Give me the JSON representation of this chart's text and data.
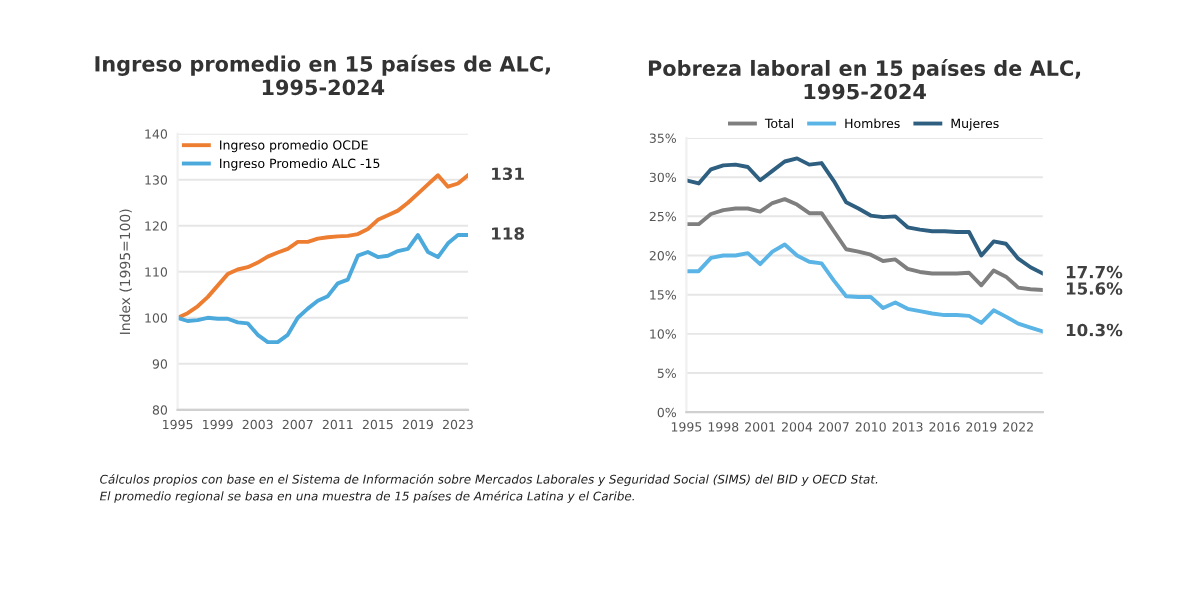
{
  "chart_data": [
    {
      "type": "line",
      "title": "Ingreso promedio en 15 países de ALC,\n1995-2024",
      "ylabel": "Index (1995=100)",
      "x": [
        1995,
        1996,
        1997,
        1998,
        1999,
        2000,
        2001,
        2002,
        2003,
        2004,
        2005,
        2006,
        2007,
        2008,
        2009,
        2010,
        2011,
        2012,
        2013,
        2014,
        2015,
        2016,
        2017,
        2018,
        2019,
        2020,
        2021,
        2022,
        2023,
        2024
      ],
      "series": [
        {
          "name": "Ingreso promedio OCDE",
          "color": "#ed7d31",
          "values": [
            100,
            101,
            102.5,
            104.5,
            107,
            109.5,
            110.5,
            111,
            112,
            113.3,
            114.2,
            115,
            116.5,
            116.5,
            117.2,
            117.5,
            117.7,
            117.8,
            118.2,
            119.3,
            121.3,
            122.3,
            123.3,
            125,
            127,
            129,
            131,
            128.5,
            129.2,
            131
          ],
          "value_labels": [
            null,
            null,
            null,
            null,
            null,
            null,
            null,
            null,
            null,
            null,
            null,
            null,
            null,
            null,
            null,
            null,
            null,
            null,
            null,
            null,
            null,
            null,
            null,
            null,
            null,
            null,
            null,
            null,
            null,
            "131"
          ]
        },
        {
          "name": "Ingreso Promedio ALC -15",
          "color": "#4ba9dc",
          "values": [
            100,
            99.3,
            99.5,
            100,
            99.8,
            99.8,
            99,
            98.8,
            96.3,
            94.7,
            94.7,
            96.3,
            100,
            102,
            103.7,
            104.7,
            107.5,
            108.3,
            113.5,
            114.3,
            113.2,
            113.5,
            114.5,
            115,
            118,
            114.3,
            113.2,
            116.2,
            118,
            118
          ],
          "value_labels": [
            null,
            null,
            null,
            null,
            null,
            null,
            null,
            null,
            null,
            null,
            null,
            null,
            null,
            null,
            null,
            null,
            null,
            null,
            null,
            null,
            null,
            null,
            null,
            null,
            null,
            null,
            null,
            null,
            null,
            "118"
          ]
        }
      ],
      "xlim": [
        1995,
        2024
      ],
      "xticks": [
        1995,
        1999,
        2003,
        2007,
        2011,
        2015,
        2019,
        2023
      ],
      "ylim": [
        80,
        140
      ],
      "yticks": [
        80,
        90,
        100,
        110,
        120,
        130,
        140
      ],
      "grid": "y",
      "legend": "top left",
      "marker": "none",
      "line_style": "solid",
      "annotations": [
        "Cálculos propios con base en el Sistema de Información sobre Mercados Laborales y Seguridad Social (SIMS) del BID y OECD Stat.\nEl promedio regional se basa en una muestra de 15 países de América Latina y el Caribe."
      ]
    },
    {
      "type": "line",
      "title": "Pobreza laboral en 15 países de ALC,\n1995-2024",
      "x": [
        1995,
        1996,
        1997,
        1998,
        1999,
        2000,
        2001,
        2002,
        2003,
        2004,
        2005,
        2006,
        2007,
        2008,
        2009,
        2010,
        2011,
        2012,
        2013,
        2014,
        2015,
        2016,
        2017,
        2018,
        2019,
        2020,
        2021,
        2022,
        2023,
        2024
      ],
      "series": [
        {
          "name": "Total",
          "color": "#7f7f7f",
          "values": [
            24,
            24,
            25.3,
            25.8,
            26,
            26,
            25.6,
            26.7,
            27.2,
            26.5,
            25.4,
            25.4,
            23.1,
            20.8,
            20.5,
            20.1,
            19.3,
            19.5,
            18.3,
            17.9,
            17.7,
            17.7,
            17.7,
            17.8,
            16.2,
            18.1,
            17.3,
            15.9,
            15.7,
            15.6
          ],
          "value_labels": [
            null,
            null,
            null,
            null,
            null,
            null,
            null,
            null,
            null,
            null,
            null,
            null,
            null,
            null,
            null,
            null,
            null,
            null,
            null,
            null,
            null,
            null,
            null,
            null,
            null,
            null,
            null,
            null,
            null,
            "15.6%"
          ]
        },
        {
          "name": "Hombres",
          "color": "#5ab4e5",
          "values": [
            18,
            18,
            19.7,
            20,
            20,
            20.3,
            18.9,
            20.5,
            21.4,
            20,
            19.2,
            19,
            16.8,
            14.8,
            14.7,
            14.7,
            13.3,
            14,
            13.2,
            12.9,
            12.6,
            12.4,
            12.4,
            12.3,
            11.4,
            13,
            12.2,
            11.3,
            10.8,
            10.3
          ],
          "value_labels": [
            null,
            null,
            null,
            null,
            null,
            null,
            null,
            null,
            null,
            null,
            null,
            null,
            null,
            null,
            null,
            null,
            null,
            null,
            null,
            null,
            null,
            null,
            null,
            null,
            null,
            null,
            null,
            null,
            null,
            "10.3%"
          ]
        },
        {
          "name": "Mujeres",
          "color": "#2e5f80",
          "values": [
            29.6,
            29.2,
            31,
            31.5,
            31.6,
            31.3,
            29.6,
            30.8,
            32,
            32.4,
            31.6,
            31.8,
            29.5,
            26.8,
            26,
            25.1,
            24.9,
            25,
            23.6,
            23.3,
            23.1,
            23.1,
            23,
            23,
            20,
            21.8,
            21.5,
            19.6,
            18.5,
            17.7
          ],
          "value_labels": [
            null,
            null,
            null,
            null,
            null,
            null,
            null,
            null,
            null,
            null,
            null,
            null,
            null,
            null,
            null,
            null,
            null,
            null,
            null,
            null,
            null,
            null,
            null,
            null,
            null,
            null,
            null,
            null,
            null,
            "17.7%"
          ]
        }
      ],
      "xlim": [
        1995,
        2024
      ],
      "xticks": [
        1995,
        1998,
        2001,
        2004,
        2007,
        2010,
        2013,
        2016,
        2019,
        2022
      ],
      "ylim": [
        0,
        35
      ],
      "yticks": [
        {
          "value": 0,
          "label": "0%"
        },
        {
          "value": 5,
          "label": "5%"
        },
        {
          "value": 10,
          "label": "10%"
        },
        {
          "value": 15,
          "label": "15%"
        },
        {
          "value": 20,
          "label": "20%"
        },
        {
          "value": 25,
          "label": "25%"
        },
        {
          "value": 30,
          "label": "30%"
        },
        {
          "value": 35,
          "label": "35%"
        }
      ],
      "grid": "y",
      "legend": "top",
      "marker": "none",
      "line_style": "solid"
    }
  ]
}
